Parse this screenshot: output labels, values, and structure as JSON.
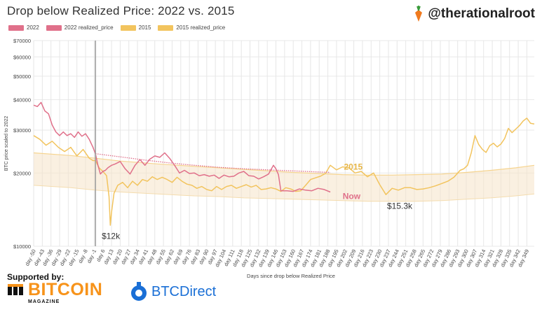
{
  "header": {
    "title": "Drop below Realized Price:  2022  vs.  2015",
    "handle": "@therationalroot"
  },
  "legend": [
    {
      "label": "2022",
      "color": "#e0708a"
    },
    {
      "label": "2022 realized_price",
      "color": "#e0708a"
    },
    {
      "label": "2015",
      "color": "#f2c45e"
    },
    {
      "label": "2015 realized_price",
      "color": "#f2c45e"
    }
  ],
  "footer": {
    "supported_by": "Supported by:",
    "sponsor1_word": "BITCOIN",
    "sponsor1_sub": "MAGAZINE",
    "sponsor2_word": "BTCDirect"
  },
  "chart_data": {
    "type": "line",
    "title": "Drop below Realized Price:  2022  vs.  2015",
    "xlabel": "Days since drop below Realized Price",
    "ylabel": "BTC price scaled to 2022",
    "y_scale": "log",
    "ylim": [
      10000,
      70000
    ],
    "xlim": [
      -50,
      355
    ],
    "y_ticks": [
      {
        "value": 70000,
        "label": "$70000"
      },
      {
        "value": 60000,
        "label": "$60000"
      },
      {
        "value": 50000,
        "label": "$50000"
      },
      {
        "value": 40000,
        "label": "$40000"
      },
      {
        "value": 30000,
        "label": "$30000"
      },
      {
        "value": 20000,
        "label": "$20000"
      },
      {
        "value": 10000,
        "label": "$10000"
      }
    ],
    "x_tick_labels": [
      "day -50",
      "day -43",
      "day -36",
      "day -29",
      "day -22",
      "day -15",
      "day -8",
      "day -1",
      "day 6",
      "day 13",
      "day 20",
      "day 27",
      "day 34",
      "day 41",
      "day 48",
      "day 55",
      "day 62",
      "day 69",
      "day 76",
      "day 83",
      "day 90",
      "day 97",
      "day 104",
      "day 111",
      "day 118",
      "day 125",
      "day 132",
      "day 139",
      "day 146",
      "day 153",
      "day 160",
      "day 167",
      "day 174",
      "day 181",
      "day 188",
      "day 195",
      "day 202",
      "day 209",
      "day 216",
      "day 223",
      "day 230",
      "day 237",
      "day 244",
      "day 251",
      "day 258",
      "day 265",
      "day 272",
      "day 279",
      "day 286",
      "day 293",
      "day 300",
      "day 307",
      "day 314",
      "day 321",
      "day 328",
      "day 335",
      "day 342",
      "day 349"
    ],
    "x_tick_start": -50,
    "x_tick_step": 7,
    "reference_line_day": 0,
    "grid": true,
    "legend_position": "top-left",
    "series": [
      {
        "name": "2022",
        "color": "#e0708a",
        "x": [
          -50,
          -47,
          -44,
          -41,
          -38,
          -35,
          -32,
          -29,
          -26,
          -23,
          -20,
          -17,
          -14,
          -11,
          -8,
          -5,
          -2,
          0,
          2,
          4,
          6,
          8,
          10,
          13,
          16,
          20,
          24,
          28,
          32,
          36,
          40,
          44,
          48,
          52,
          56,
          60,
          64,
          68,
          72,
          76,
          80,
          84,
          88,
          92,
          96,
          100,
          104,
          108,
          112,
          116,
          120,
          124,
          128,
          132,
          136,
          140,
          144,
          146,
          148,
          150,
          155,
          160,
          165,
          170,
          175,
          180,
          185,
          190
        ],
        "y": [
          38000,
          37500,
          39000,
          36000,
          35000,
          31500,
          29500,
          28500,
          29500,
          28500,
          29000,
          28000,
          29500,
          28300,
          29000,
          27500,
          25500,
          24000,
          21500,
          19800,
          20300,
          20500,
          21000,
          21500,
          21800,
          22300,
          20800,
          19800,
          21500,
          22700,
          21500,
          22800,
          23500,
          23200,
          24200,
          23000,
          21500,
          20000,
          20500,
          19900,
          20000,
          19500,
          19700,
          19400,
          19600,
          19000,
          19600,
          19300,
          19400,
          20000,
          20300,
          19500,
          19400,
          18900,
          19300,
          19800,
          21500,
          20800,
          19700,
          16900,
          16900,
          16800,
          17200,
          17000,
          16900,
          17300,
          17100,
          16700
        ]
      },
      {
        "name": "2022 realized_price",
        "color": "#e0708a",
        "x": [
          0,
          20,
          40,
          60,
          80,
          100,
          120,
          140,
          160,
          180,
          190
        ],
        "y": [
          24000,
          23300,
          22600,
          22000,
          21500,
          21100,
          20800,
          20600,
          20400,
          20200,
          20100
        ]
      },
      {
        "name": "2015",
        "color": "#f2c45e",
        "x": [
          -50,
          -45,
          -40,
          -35,
          -30,
          -25,
          -20,
          -15,
          -10,
          -5,
          -2,
          0,
          3,
          6,
          9,
          11,
          12,
          13,
          15,
          18,
          22,
          26,
          30,
          34,
          38,
          42,
          46,
          50,
          54,
          58,
          62,
          66,
          70,
          74,
          78,
          82,
          86,
          90,
          94,
          98,
          102,
          106,
          110,
          114,
          118,
          122,
          126,
          130,
          134,
          138,
          142,
          146,
          150,
          154,
          158,
          162,
          166,
          170,
          174,
          178,
          182,
          186,
          190,
          195,
          200,
          205,
          210,
          215,
          220,
          225,
          230,
          235,
          240,
          245,
          250,
          255,
          260,
          265,
          270,
          275,
          280,
          285,
          290,
          295,
          298,
          301,
          304,
          307,
          310,
          313,
          316,
          319,
          322,
          325,
          328,
          331,
          334,
          337,
          340,
          343,
          346,
          349,
          352,
          355
        ],
        "y": [
          28500,
          27500,
          26000,
          27000,
          25500,
          24500,
          25500,
          23500,
          25000,
          23000,
          22500,
          22500,
          21000,
          20300,
          19500,
          16000,
          12200,
          13800,
          16500,
          17800,
          18300,
          17400,
          18500,
          17800,
          18800,
          18500,
          19300,
          18800,
          19200,
          18800,
          18300,
          19200,
          18500,
          18000,
          17800,
          17300,
          17600,
          17100,
          16900,
          17600,
          17100,
          17600,
          17800,
          17300,
          17600,
          17900,
          17500,
          17800,
          17100,
          17200,
          17400,
          17200,
          16800,
          17400,
          17200,
          16800,
          16900,
          17800,
          18800,
          19100,
          19400,
          19900,
          21500,
          20600,
          21200,
          21000,
          20000,
          20300,
          19300,
          20000,
          17900,
          16300,
          17300,
          17000,
          17400,
          17400,
          17100,
          17200,
          17400,
          17700,
          18100,
          18500,
          19200,
          20500,
          20800,
          21500,
          24200,
          28500,
          26200,
          25000,
          24300,
          25900,
          26500,
          25600,
          26300,
          27700,
          30500,
          29300,
          30300,
          31300,
          32700,
          33600,
          32000,
          31800
        ]
      },
      {
        "name": "2015 realized_price",
        "color": "#f2c45e",
        "x": [
          -50,
          -20,
          0,
          20,
          50,
          80,
          100,
          120,
          140,
          160,
          180,
          200,
          220,
          240,
          260,
          280,
          300,
          320,
          340,
          355
        ],
        "y": [
          24200,
          23600,
          23000,
          22400,
          21800,
          21300,
          21000,
          20700,
          20400,
          20100,
          19900,
          19700,
          19600,
          19600,
          19700,
          19800,
          20100,
          20500,
          21000,
          21500
        ]
      },
      {
        "name": "2015 band lower",
        "color": "#f2c45e",
        "x": [
          -50,
          -20,
          0,
          20,
          50,
          80,
          100,
          120,
          140,
          160,
          180,
          200,
          220,
          240,
          260,
          280,
          300,
          320,
          340,
          355
        ],
        "y": [
          17800,
          17400,
          17000,
          16700,
          16400,
          16100,
          16000,
          15800,
          15700,
          15600,
          15500,
          15400,
          15300,
          15300,
          15300,
          15400,
          15600,
          15800,
          16100,
          16400
        ]
      }
    ],
    "annotations": [
      {
        "text": "$12k",
        "x": 13,
        "y": 11300,
        "color": "#333333"
      },
      {
        "text": "2015",
        "x": 201,
        "y": 21800,
        "color": "#e6b547"
      },
      {
        "text": "Now",
        "x": 200,
        "y": 16500,
        "color": "#e0708a"
      },
      {
        "text": "$15.3k",
        "x": 237,
        "y": 15000,
        "color": "#333333"
      }
    ]
  }
}
